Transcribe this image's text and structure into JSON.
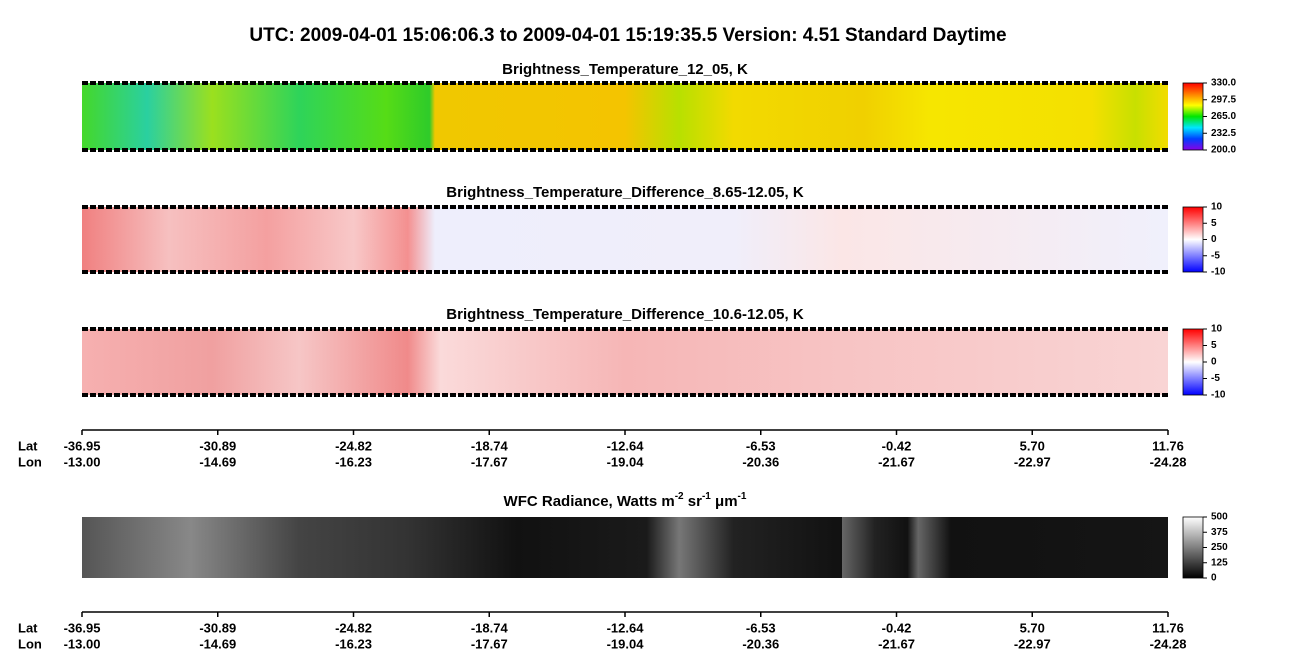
{
  "title": "UTC:  2009-04-01   15:06:06.3  to  2009-04-01   15:19:35.5    Version: 4.51  Standard Daytime",
  "chart_data": [
    {
      "type": "heatmap",
      "title_parts": [
        "Brightness_Temperature_12_05, K"
      ],
      "clim": [
        200,
        330
      ],
      "cticks": [
        {
          "value": 330,
          "label": "330.0"
        },
        {
          "value": 297.5,
          "label": "297.5"
        },
        {
          "value": 265,
          "label": "265.0"
        },
        {
          "value": 232.5,
          "label": "232.5"
        },
        {
          "value": 200,
          "label": "200.0"
        }
      ],
      "colormap": [
        "#8a00e6",
        "#0040ff",
        "#00e6ff",
        "#00e600",
        "#ffff00",
        "#ff8000",
        "#ff0000"
      ]
    },
    {
      "type": "heatmap",
      "title_parts": [
        "Brightness_Temperature_Difference_8.65-12.05, K"
      ],
      "clim": [
        -10,
        10
      ],
      "cticks": [
        10,
        5,
        0,
        -5,
        -10
      ],
      "colormap": [
        "#0000ff",
        "#ffffff",
        "#ff0000"
      ]
    },
    {
      "type": "heatmap",
      "title_parts": [
        "Brightness_Temperature_Difference_10.6-12.05, K"
      ],
      "clim": [
        -10,
        10
      ],
      "cticks": [
        10,
        5,
        0,
        -5,
        -10
      ],
      "colormap": [
        "#0000ff",
        "#ffffff",
        "#ff0000"
      ]
    },
    {
      "type": "heatmap",
      "title_parts": [
        "WFC Radiance, Watts m",
        "-2",
        " sr",
        "-1",
        " μm",
        "-1"
      ],
      "clim": [
        0,
        500
      ],
      "cticks": [
        500,
        375,
        250,
        125,
        0
      ],
      "colormap": [
        "#000000",
        "#ffffff"
      ]
    }
  ],
  "axes": [
    {
      "row_labels": [
        "Lat",
        "Lon"
      ],
      "lat": [
        "-36.95",
        "-30.89",
        "-24.82",
        "-18.74",
        "-12.64",
        "-6.53",
        "-0.42",
        "5.70",
        "11.76"
      ],
      "lon": [
        "-13.00",
        "-14.69",
        "-16.23",
        "-17.67",
        "-19.04",
        "-20.36",
        "-21.67",
        "-22.97",
        "-24.28"
      ]
    },
    {
      "row_labels": [
        "Lat",
        "Lon"
      ],
      "lat": [
        "-36.95",
        "-30.89",
        "-24.82",
        "-18.74",
        "-12.64",
        "-6.53",
        "-0.42",
        "5.70",
        "11.76"
      ],
      "lon": [
        "-13.00",
        "-14.69",
        "-16.23",
        "-17.67",
        "-19.04",
        "-20.36",
        "-21.67",
        "-22.97",
        "-24.28"
      ]
    }
  ]
}
